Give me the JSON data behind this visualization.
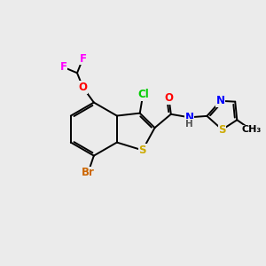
{
  "background_color": "#ebebeb",
  "atom_colors": {
    "F": "#ff00ff",
    "O": "#ff0000",
    "Cl": "#00cc00",
    "Br": "#cc6600",
    "S": "#ccaa00",
    "N": "#0000ff",
    "H": "#555555",
    "C": "#000000"
  },
  "bond_color": "#000000",
  "bond_width": 1.4,
  "font_size": 8.5
}
